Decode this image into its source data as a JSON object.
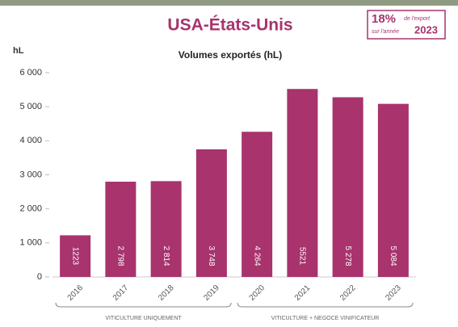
{
  "chart_data": {
    "type": "bar",
    "title": "USA-États-Unis",
    "subtitle": "Volumes exportés (hL)",
    "y_unit": "hL",
    "badge": {
      "share": "18%",
      "line1": "de l'export",
      "line2": "sur l'année",
      "year": "2023"
    },
    "categories": [
      "2016",
      "2017",
      "2018",
      "2019",
      "2020",
      "2021",
      "2022",
      "2023"
    ],
    "values": [
      1223,
      2798,
      2814,
      3748,
      4264,
      5521,
      5278,
      5084
    ],
    "value_labels": [
      "1223",
      "2 798",
      "2 814",
      "3 748",
      "4 264",
      "5521",
      "5 278",
      "5 084"
    ],
    "color": "#a8336d",
    "ylim": [
      0,
      6000
    ],
    "yticks": [
      0,
      {
        "value": 1000,
        "label": "1 000"
      },
      {
        "value": 2000,
        "label": "2 000"
      },
      {
        "value": 3000,
        "label": "3 000"
      },
      {
        "value": 4000,
        "label": "4 000"
      },
      {
        "value": 5000,
        "label": "5 000"
      },
      {
        "value": 6000,
        "label": "6 000"
      }
    ],
    "groups": [
      "VITICULTURE UNIQUEMENT",
      "VITICULTURE + NEGOCE VINIFICATEUR"
    ]
  }
}
